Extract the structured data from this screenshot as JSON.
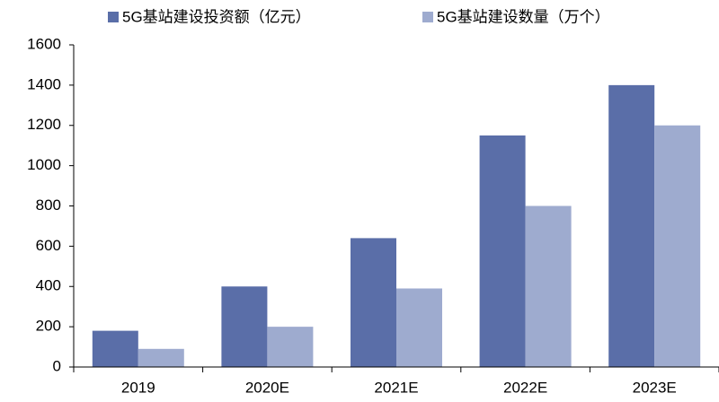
{
  "chart_data": {
    "type": "bar",
    "categories": [
      "2019",
      "2020E",
      "2021E",
      "2022E",
      "2023E"
    ],
    "series": [
      {
        "name": "5G基站建设投资额（亿元）",
        "color": "#5a6ea8",
        "values": [
          180,
          400,
          640,
          1150,
          1400
        ]
      },
      {
        "name": "5G基站建设数量（万个）",
        "color": "#9eabcf",
        "values": [
          90,
          200,
          390,
          800,
          1200
        ]
      }
    ],
    "ylim": [
      0,
      1600
    ],
    "yticks": [
      0,
      200,
      400,
      600,
      800,
      1000,
      1200,
      1400,
      1600
    ],
    "grid": false
  }
}
